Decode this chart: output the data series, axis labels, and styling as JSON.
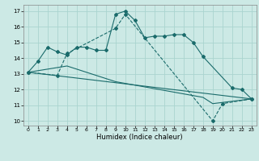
{
  "title": "",
  "xlabel": "Humidex (Indice chaleur)",
  "bg_color": "#cce9e5",
  "grid_color": "#aad4cf",
  "line_color": "#1a6b6b",
  "xlim": [
    -0.5,
    23.5
  ],
  "ylim": [
    9.7,
    17.4
  ],
  "yticks": [
    10,
    11,
    12,
    13,
    14,
    15,
    16,
    17
  ],
  "xticks": [
    0,
    1,
    2,
    3,
    4,
    5,
    6,
    7,
    8,
    9,
    10,
    11,
    12,
    13,
    14,
    15,
    16,
    17,
    18,
    19,
    20,
    21,
    22,
    23
  ],
  "series1_x": [
    0,
    1,
    2,
    3,
    4,
    5,
    6,
    7,
    8,
    9,
    10,
    11,
    12,
    13,
    14,
    15,
    16,
    17,
    18,
    21,
    22,
    23
  ],
  "series1_y": [
    13.1,
    13.8,
    14.7,
    14.4,
    14.2,
    14.7,
    14.7,
    14.5,
    14.5,
    16.8,
    17.0,
    16.4,
    15.3,
    15.4,
    15.4,
    15.5,
    15.5,
    15.0,
    14.1,
    12.1,
    12.0,
    11.4
  ],
  "series2_x": [
    0,
    3,
    4,
    9,
    10,
    19,
    20,
    23
  ],
  "series2_y": [
    13.1,
    12.9,
    14.3,
    15.9,
    16.8,
    10.0,
    11.1,
    11.4
  ],
  "series3_x": [
    0,
    23
  ],
  "series3_y": [
    13.1,
    11.4
  ],
  "series4_x": [
    0,
    4,
    9,
    18,
    19,
    23
  ],
  "series4_y": [
    13.1,
    13.5,
    12.5,
    11.5,
    11.1,
    11.4
  ]
}
